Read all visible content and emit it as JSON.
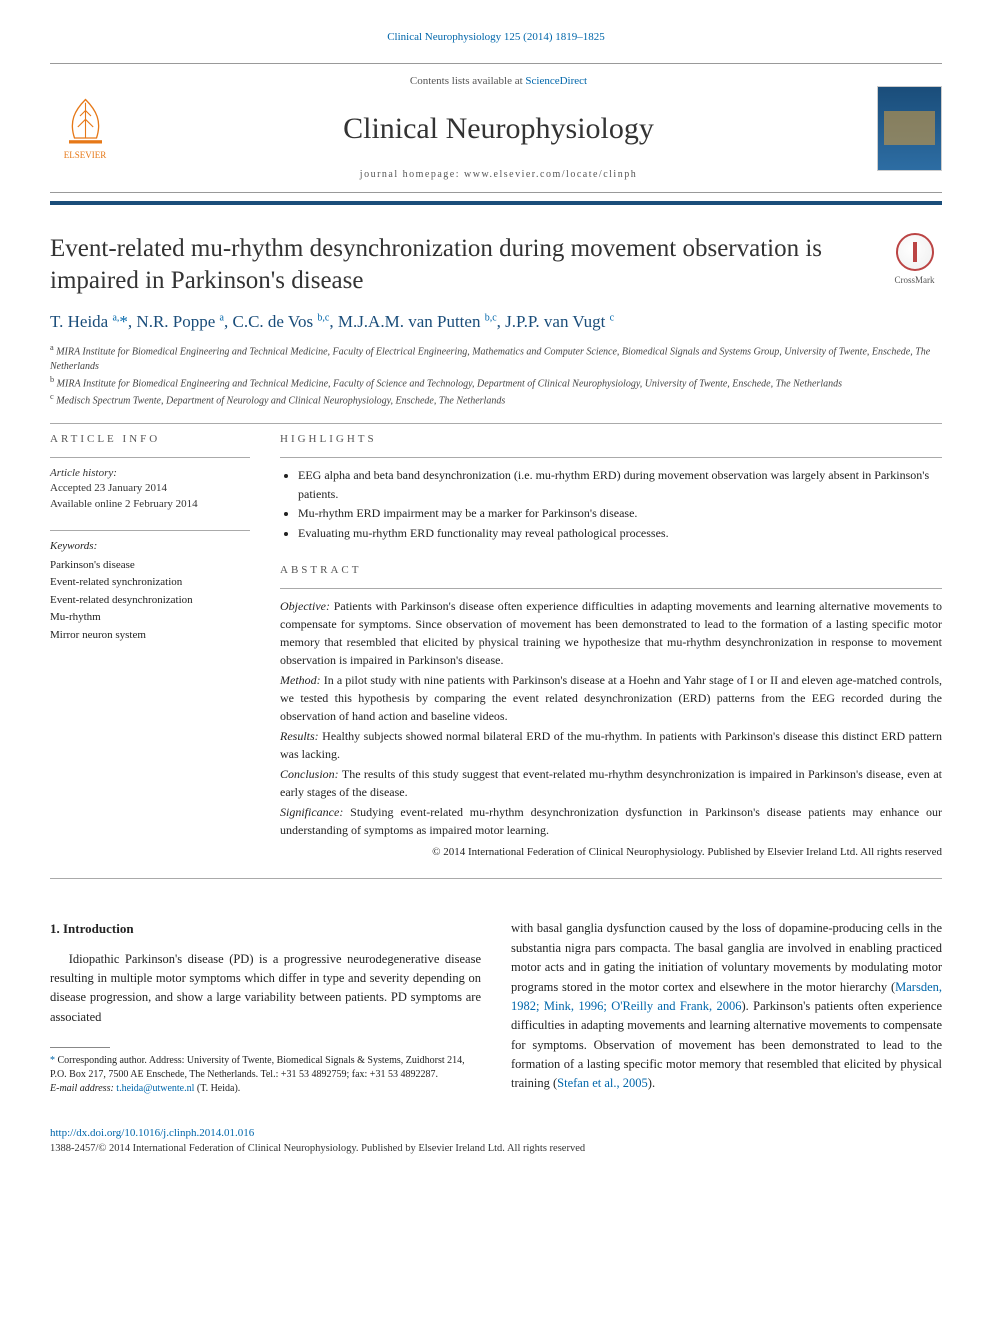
{
  "header": {
    "citation": "Clinical Neurophysiology 125 (2014) 1819–1825",
    "contents_prefix": "Contents lists available at ",
    "contents_link": "ScienceDirect",
    "journal_name": "Clinical Neurophysiology",
    "homepage_prefix": "journal homepage: ",
    "homepage_url": "www.elsevier.com/locate/clinph",
    "publisher": "ELSEVIER"
  },
  "colors": {
    "accent": "#1a4d7a",
    "link": "#0066aa",
    "elsevier_orange": "#e67817"
  },
  "crossmark_label": "CrossMark",
  "article": {
    "title": "Event-related mu-rhythm desynchronization during movement observation is impaired in Parkinson's disease",
    "authors_html": "T. Heida <sup>a,</sup><span class='star'>*</span>, N.R. Poppe <sup>a</sup>, C.C. de Vos <sup>b,c</sup>, M.J.A.M. van Putten <sup>b,c</sup>, J.P.P. van Vugt <sup>c</sup>",
    "affiliations": [
      {
        "sup": "a",
        "text": "MIRA Institute for Biomedical Engineering and Technical Medicine, Faculty of Electrical Engineering, Mathematics and Computer Science, Biomedical Signals and Systems Group, University of Twente, Enschede, The Netherlands"
      },
      {
        "sup": "b",
        "text": "MIRA Institute for Biomedical Engineering and Technical Medicine, Faculty of Science and Technology, Department of Clinical Neurophysiology, University of Twente, Enschede, The Netherlands"
      },
      {
        "sup": "c",
        "text": "Medisch Spectrum Twente, Department of Neurology and Clinical Neurophysiology, Enschede, The Netherlands"
      }
    ]
  },
  "info": {
    "label": "article info",
    "history_label": "Article history:",
    "accepted": "Accepted 23 January 2014",
    "online": "Available online 2 February 2014",
    "keywords_label": "Keywords:",
    "keywords": [
      "Parkinson's disease",
      "Event-related synchronization",
      "Event-related desynchronization",
      "Mu-rhythm",
      "Mirror neuron system"
    ]
  },
  "highlights": {
    "label": "highlights",
    "items": [
      "EEG alpha and beta band desynchronization (i.e. mu-rhythm ERD) during movement observation was largely absent in Parkinson's patients.",
      "Mu-rhythm ERD impairment may be a marker for Parkinson's disease.",
      "Evaluating mu-rhythm ERD functionality may reveal pathological processes."
    ]
  },
  "abstract": {
    "label": "abstract",
    "sections": [
      {
        "head": "Objective:",
        "text": "Patients with Parkinson's disease often experience difficulties in adapting movements and learning alternative movements to compensate for symptoms. Since observation of movement has been demonstrated to lead to the formation of a lasting specific motor memory that resembled that elicited by physical training we hypothesize that mu-rhythm desynchronization in response to movement observation is impaired in Parkinson's disease."
      },
      {
        "head": "Method:",
        "text": "In a pilot study with nine patients with Parkinson's disease at a Hoehn and Yahr stage of I or II and eleven age-matched controls, we tested this hypothesis by comparing the event related desynchronization (ERD) patterns from the EEG recorded during the observation of hand action and baseline videos."
      },
      {
        "head": "Results:",
        "text": "Healthy subjects showed normal bilateral ERD of the mu-rhythm. In patients with Parkinson's disease this distinct ERD pattern was lacking."
      },
      {
        "head": "Conclusion:",
        "text": "The results of this study suggest that event-related mu-rhythm desynchronization is impaired in Parkinson's disease, even at early stages of the disease."
      },
      {
        "head": "Significance:",
        "text": "Studying event-related mu-rhythm desynchronization dysfunction in Parkinson's disease patients may enhance our understanding of symptoms as impaired motor learning."
      }
    ],
    "copyright": "© 2014 International Federation of Clinical Neurophysiology. Published by Elsevier Ireland Ltd. All rights reserved"
  },
  "body": {
    "section_heading": "1. Introduction",
    "col1": "Idiopathic Parkinson's disease (PD) is a progressive neurodegenerative disease resulting in multiple motor symptoms which differ in type and severity depending on disease progression, and show a large variability between patients. PD symptoms are associated",
    "col2_pre": "with basal ganglia dysfunction caused by the loss of dopamine-producing cells in the substantia nigra pars compacta. The basal ganglia are involved in enabling practiced motor acts and in gating the initiation of voluntary movements by modulating motor programs stored in the motor cortex and elsewhere in the motor hierarchy (",
    "col2_ref1": "Marsden, 1982; Mink, 1996; O'Reilly and Frank, 2006",
    "col2_mid": "). Parkinson's patients often experience difficulties in adapting movements and learning alternative movements to compensate for symptoms. Observation of movement has been demonstrated to lead to the formation of a lasting specific motor memory that resembled that elicited by physical training (",
    "col2_ref2": "Stefan et al., 2005",
    "col2_post": ")."
  },
  "footnote": {
    "corr_label": "Corresponding author. Address: University of Twente, Biomedical Signals & Systems, Zuidhorst 214, P.O. Box 217, 7500 AE Enschede, The Netherlands. Tel.: +31 53 4892759; fax: +31 53 4892287.",
    "email_label": "E-mail address:",
    "email": "t.heida@utwente.nl",
    "email_person": "(T. Heida)."
  },
  "footer": {
    "doi": "http://dx.doi.org/10.1016/j.clinph.2014.01.016",
    "issn_line": "1388-2457/© 2014 International Federation of Clinical Neurophysiology. Published by Elsevier Ireland Ltd. All rights reserved"
  }
}
